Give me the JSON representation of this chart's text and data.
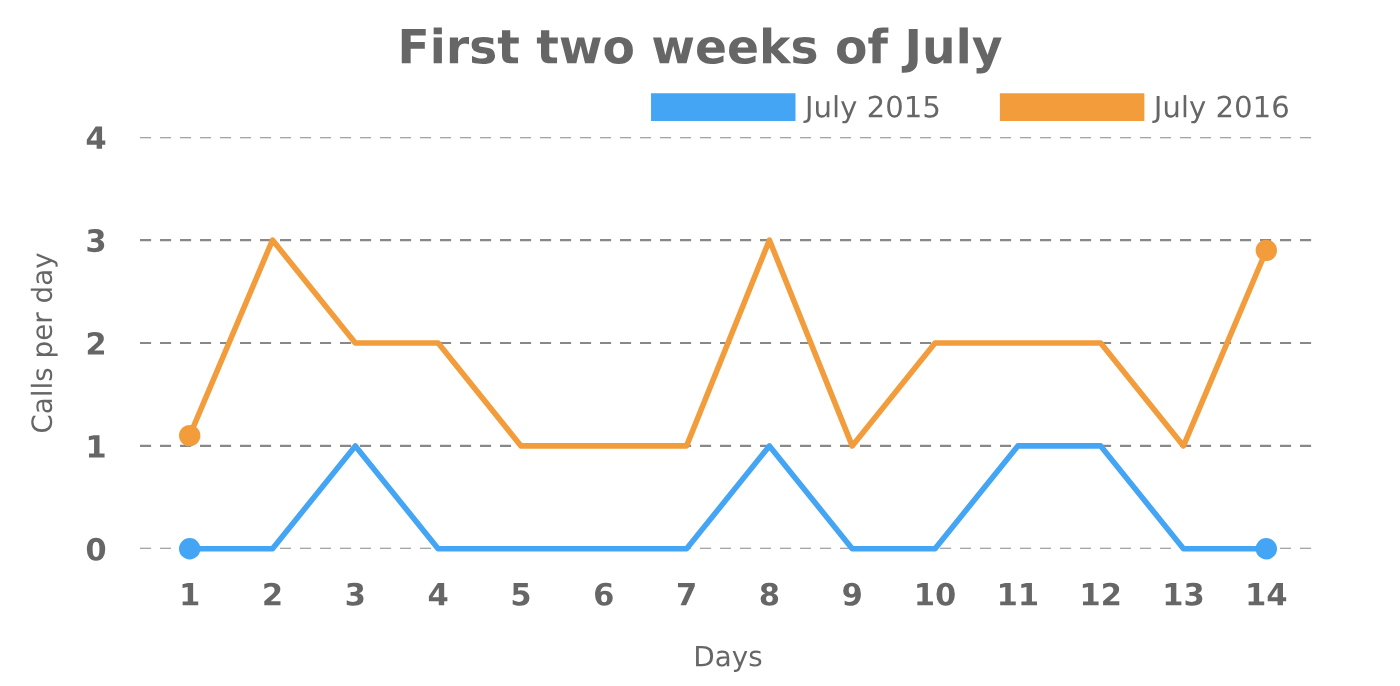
{
  "chart_data": {
    "type": "line",
    "title": "First two weeks of July",
    "xlabel": "Days",
    "ylabel": "Calls per day",
    "categories": [
      "1",
      "2",
      "3",
      "4",
      "5",
      "6",
      "7",
      "8",
      "9",
      "10",
      "11",
      "12",
      "13",
      "14"
    ],
    "series": [
      {
        "name": "July 2015",
        "color": "#45a5f5",
        "values": [
          0,
          0,
          1,
          0,
          0,
          0,
          0,
          1,
          0,
          0,
          1,
          1,
          0,
          0
        ]
      },
      {
        "name": "July 2016",
        "color": "#f39c3b",
        "values": [
          1.1,
          3,
          2,
          2,
          1,
          1,
          1,
          3,
          1,
          2,
          2,
          2,
          1,
          2.9
        ]
      },
      {
        "type": "scatter",
        "color": "#45a5f5",
        "x": [
          "1",
          "14"
        ],
        "values": [
          0,
          0
        ]
      },
      {
        "type": "scatter",
        "color": "#f39c3b",
        "x": [
          "1",
          "14"
        ],
        "values": [
          1.1,
          2.9
        ]
      }
    ],
    "ylim": [
      0,
      4
    ],
    "yticks": [
      0,
      1,
      2,
      3,
      4
    ],
    "grid": "y",
    "legend": "top right",
    "line_style": "solid"
  }
}
